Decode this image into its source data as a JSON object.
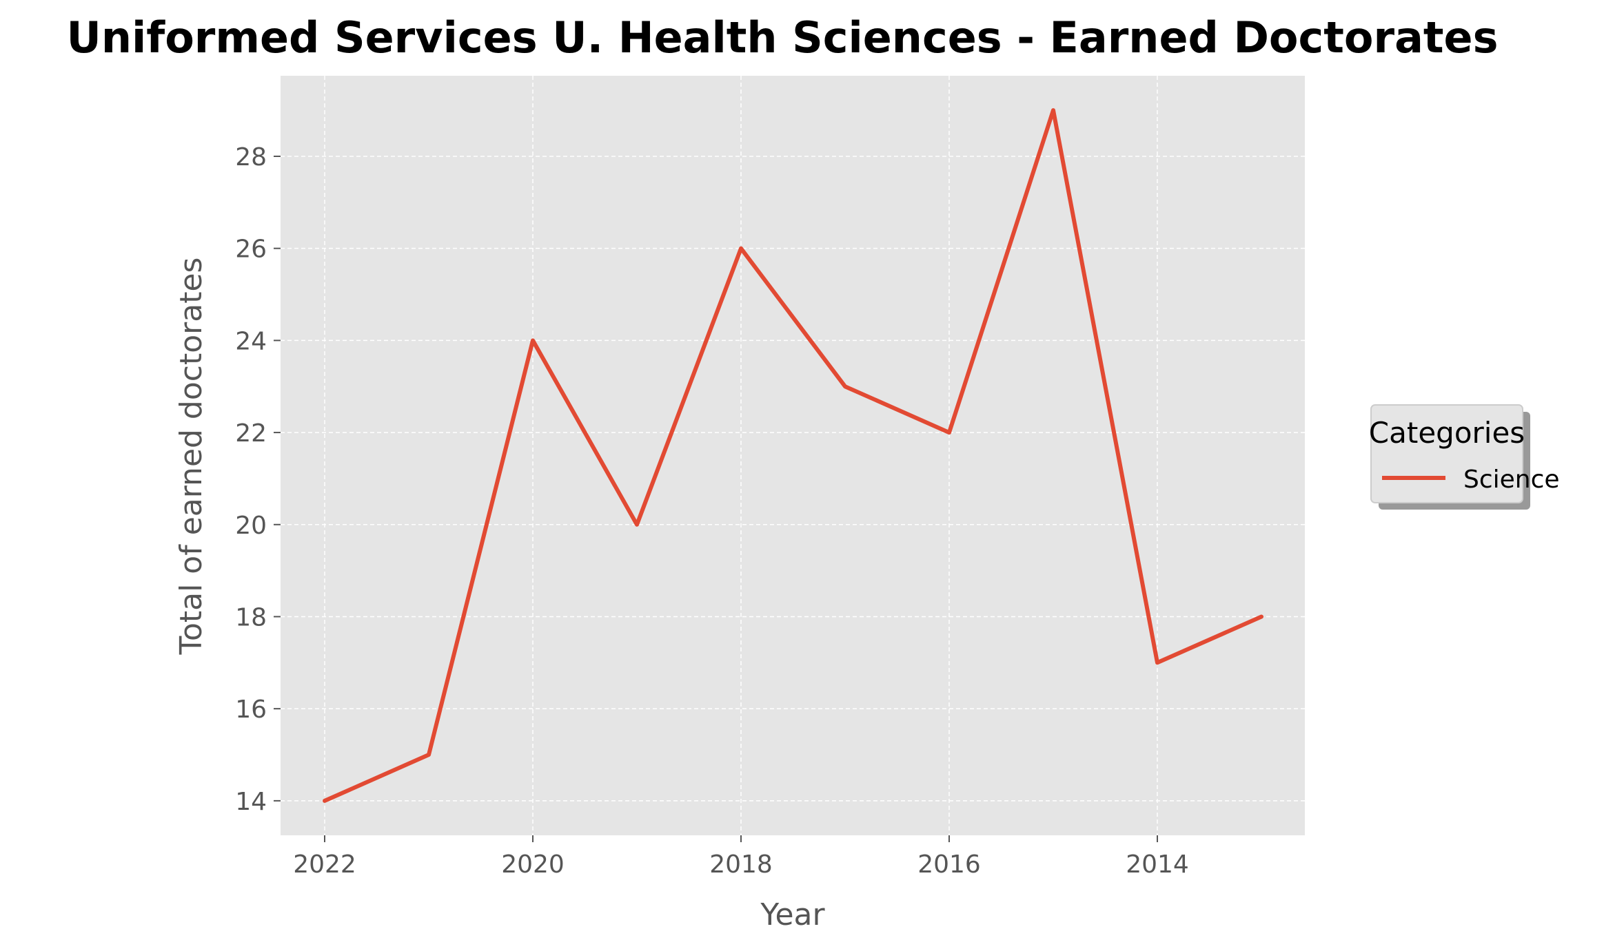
{
  "chart_data": {
    "type": "line",
    "title": "Uniformed Services U. Health Sciences - Earned Doctorates",
    "xlabel": "Year",
    "ylabel": "Total of earned doctorates",
    "x": [
      2022,
      2021,
      2020,
      2019,
      2018,
      2017,
      2016,
      2015,
      2014,
      2013
    ],
    "x_ticks": [
      2022,
      2020,
      2018,
      2016,
      2014
    ],
    "x_inverted": true,
    "y_ticks": [
      14,
      16,
      18,
      20,
      22,
      24,
      26,
      28
    ],
    "ylim": [
      13.25,
      29.75
    ],
    "series": [
      {
        "name": "Science",
        "color": "#E24A33",
        "values": [
          14,
          15,
          24,
          20,
          26,
          23,
          22,
          29,
          17,
          18
        ]
      }
    ],
    "grid": true,
    "legend": {
      "title": "Categories",
      "placement": "right"
    },
    "colors": {
      "plot_background": "#E5E5E5",
      "grid": "#FFFFFF",
      "tick_text": "#555555"
    }
  }
}
